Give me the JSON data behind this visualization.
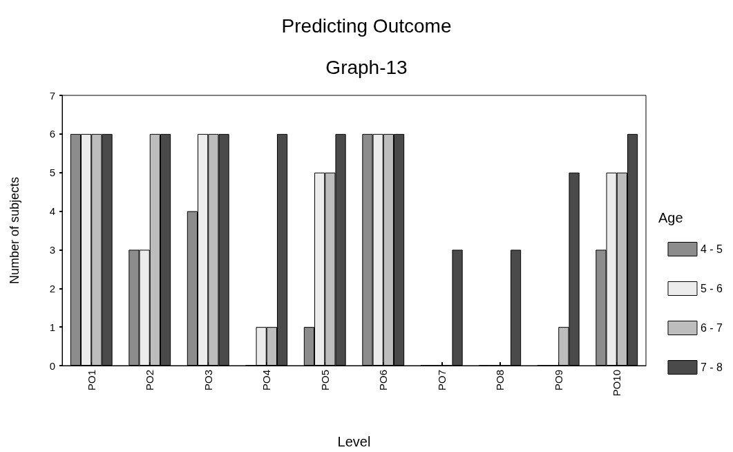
{
  "chart_data": {
    "type": "bar",
    "title": "Predicting Outcome",
    "subtitle": "Graph-13",
    "xlabel": "Level",
    "ylabel": "Number of subjects",
    "legend_title": "Age",
    "categories": [
      "PO1",
      "PO2",
      "PO3",
      "PO4",
      "PO5",
      "PO6",
      "PO7",
      "PO8",
      "PO9",
      "PO10"
    ],
    "series": [
      {
        "name": "4 - 5",
        "color": "#8c8c8c",
        "values": [
          6,
          3,
          4,
          0,
          1,
          6,
          0,
          0,
          0,
          3
        ]
      },
      {
        "name": "5 - 6",
        "color": "#ececec",
        "values": [
          6,
          3,
          6,
          1,
          5,
          6,
          0,
          0,
          0,
          5
        ]
      },
      {
        "name": "6 - 7",
        "color": "#bdbdbd",
        "values": [
          6,
          6,
          6,
          1,
          5,
          6,
          0,
          0,
          1,
          5
        ]
      },
      {
        "name": "7 - 8",
        "color": "#4a4a4a",
        "values": [
          6,
          6,
          6,
          6,
          6,
          6,
          3,
          3,
          5,
          6
        ]
      }
    ],
    "ylim": [
      0,
      7
    ],
    "yticks": [
      0,
      1,
      2,
      3,
      4,
      5,
      6,
      7
    ],
    "grid": false,
    "legend": "right"
  }
}
